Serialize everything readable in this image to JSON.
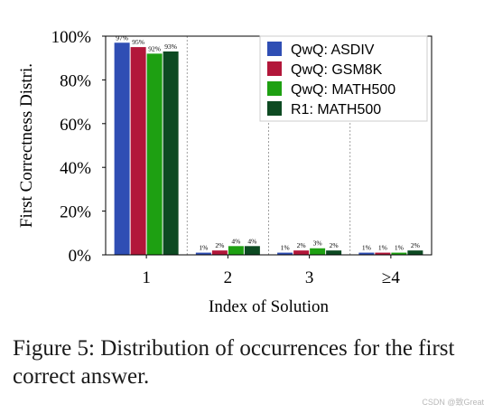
{
  "chart_data": {
    "type": "bar",
    "categories": [
      "1",
      "2",
      "3",
      "≥4"
    ],
    "series": [
      {
        "name": "QwQ: ASDIV",
        "color": "#2f4eb4",
        "values": [
          97,
          1,
          1,
          1
        ],
        "labels": [
          "97%",
          "1%",
          "1%",
          "1%"
        ]
      },
      {
        "name": "QwQ: GSM8K",
        "color": "#b2173a",
        "values": [
          95,
          2,
          2,
          1
        ],
        "labels": [
          "95%",
          "2%",
          "2%",
          "1%"
        ]
      },
      {
        "name": "QwQ: MATH500",
        "color": "#1ea012",
        "values": [
          92,
          4,
          3,
          1
        ],
        "labels": [
          "92%",
          "4%",
          "3%",
          "1%"
        ]
      },
      {
        "name": "R1: MATH500",
        "color": "#0d4a22",
        "values": [
          93,
          4,
          2,
          2
        ],
        "labels": [
          "93%",
          "4%",
          "2%",
          "2%"
        ]
      }
    ],
    "xlabel": "Index of Solution",
    "ylabel": "First Correctness Distri.",
    "ylim": [
      0,
      100
    ],
    "yticks": [
      "0%",
      "20%",
      "40%",
      "60%",
      "80%",
      "100%"
    ],
    "legend": "top-right",
    "grid": "vertical dotted separators"
  },
  "caption": "Figure 5: Distribution of occurrences for the first correct answer.",
  "watermark": "CSDN @致Great"
}
